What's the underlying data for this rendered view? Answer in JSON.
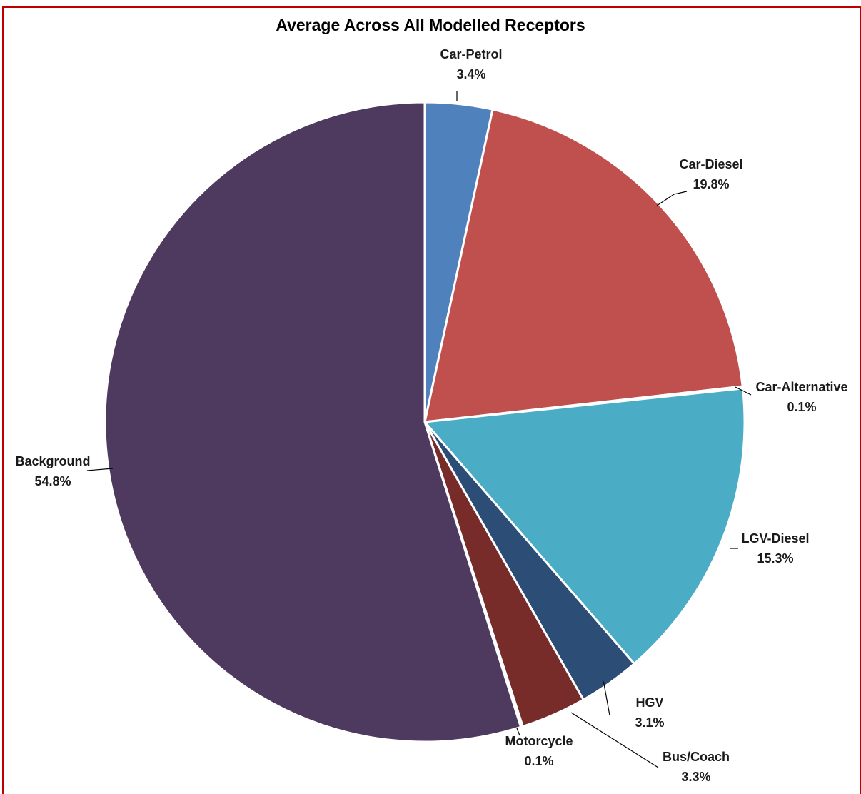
{
  "chart_data": {
    "type": "pie",
    "title": "Average Across All Modelled Receptors",
    "slices": [
      {
        "name": "Car-Petrol",
        "value_label": "3.4%",
        "value": 3.4,
        "color": "#4f81bd"
      },
      {
        "name": "Car-Diesel",
        "value_label": "19.8%",
        "value": 19.8,
        "color": "#c0504d"
      },
      {
        "name": "Car-Alternative",
        "value_label": "0.1%",
        "value": 0.1,
        "color": "#9bbb59"
      },
      {
        "name": "LGV-Diesel",
        "value_label": "15.3%",
        "value": 15.3,
        "color": "#4bacc6"
      },
      {
        "name": "HGV",
        "value_label": "3.1%",
        "value": 3.1,
        "color": "#2c4d75"
      },
      {
        "name": "Bus/Coach",
        "value_label": "3.3%",
        "value": 3.3,
        "color": "#772c2a"
      },
      {
        "name": "Motorcycle",
        "value_label": "0.1%",
        "value": 0.1,
        "color": "#5f7530"
      },
      {
        "name": "Background",
        "value_label": "54.8%",
        "value": 54.8,
        "color": "#4f3a5f"
      }
    ],
    "start_angle": "12 o'clock",
    "direction": "clockwise",
    "legend": "none"
  }
}
